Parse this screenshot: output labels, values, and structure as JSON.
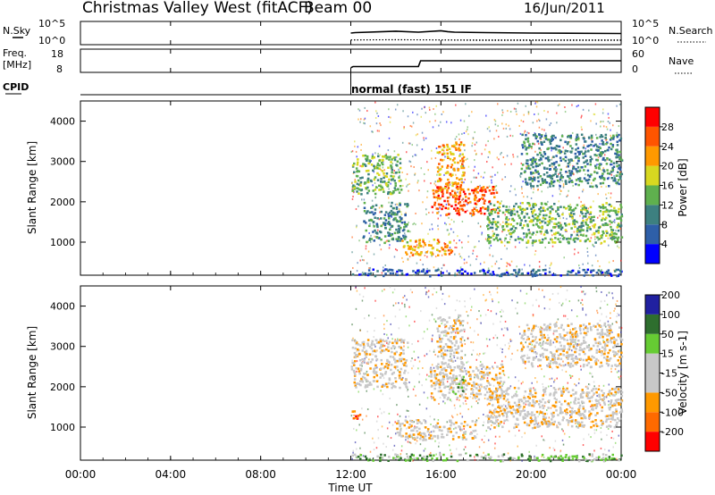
{
  "title": {
    "radar": "Christmas Valley West (fitACF)",
    "beam": "Beam 00",
    "date": "16/Jun/2011"
  },
  "colors": {
    "power": [
      "#0000ff",
      "#2e5fa8",
      "#3d8080",
      "#5fb04e",
      "#d8d820",
      "#ff9900",
      "#ff5500",
      "#ff0000"
    ],
    "velocity": [
      "#ff0000",
      "#ff6a00",
      "#ff9900",
      "#c8c8c8",
      "#c8c8c8",
      "#66cc33",
      "#2e6e2e",
      "#2020a0"
    ]
  },
  "chart_data": [
    {
      "type": "line",
      "panel": "nsky-nsearch",
      "labels": {
        "left": "N.Sky",
        "right": "N.Search"
      },
      "left_ticks": [
        "10^5",
        "10^0"
      ],
      "right_ticks": [
        "10^5",
        "10^0"
      ],
      "series": [
        {
          "name": "N.Sky",
          "style": "solid",
          "x": [
            12.0,
            12.2,
            14.0,
            15.0,
            16.0,
            16.3,
            16.6,
            18.0,
            20.0,
            24.0
          ],
          "y": [
            2.5,
            2.6,
            2.9,
            2.7,
            3.0,
            2.8,
            2.7,
            2.6,
            2.5,
            2.4
          ]
        },
        {
          "name": "N.Search",
          "style": "dotted",
          "x": [
            12.0,
            14.0,
            16.0,
            18.0,
            20.0,
            24.0
          ],
          "y": [
            1.0,
            1.1,
            1.0,
            0.9,
            0.9,
            0.9
          ]
        }
      ]
    },
    {
      "type": "line",
      "panel": "freq-nave",
      "labels": {
        "left_top": "Freq.",
        "left_bottom": "[MHz]",
        "right": "Nave"
      },
      "left_ticks": [
        "18",
        "8"
      ],
      "right_ticks": [
        "60",
        "0"
      ],
      "series": [
        {
          "name": "Freq.",
          "style": "solid",
          "x": [
            12.0,
            12.1,
            15.0,
            15.1,
            24.0
          ],
          "y": [
            10.0,
            10.5,
            10.5,
            13.0,
            13.0
          ]
        },
        {
          "name": "Nave",
          "style": "dotted",
          "x": [
            12.0,
            24.0
          ],
          "y": [
            22,
            22
          ]
        }
      ]
    },
    {
      "type": "text",
      "panel": "cpid",
      "label": "CPID",
      "x": 12.0,
      "program": "normal (fast) 151 IF"
    },
    {
      "type": "heatmap",
      "panel": "power",
      "ylabel": "Slant Range [km]",
      "ylim": [
        180,
        4500
      ],
      "yticks": [
        1000,
        2000,
        3000,
        4000
      ],
      "xlim": [
        0,
        24
      ],
      "colorbar_label": "Power [dB]",
      "colorbar_ticks": [
        "4",
        "8",
        "12",
        "16",
        "20",
        "24",
        "28"
      ],
      "regions": [
        {
          "t0": 12.0,
          "t1": 14.2,
          "r0": 2200,
          "r1": 3200,
          "level": 3
        },
        {
          "t0": 12.5,
          "t1": 14.5,
          "r0": 1000,
          "r1": 2000,
          "level": 2
        },
        {
          "t0": 15.5,
          "t1": 18.5,
          "r0": 1700,
          "r1": 2400,
          "level": 6
        },
        {
          "t0": 15.8,
          "t1": 17.0,
          "r0": 2300,
          "r1": 3500,
          "level": 5
        },
        {
          "t0": 14.2,
          "t1": 16.5,
          "r0": 700,
          "r1": 1100,
          "level": 5
        },
        {
          "t0": 18.0,
          "t1": 24.0,
          "r0": 1000,
          "r1": 2000,
          "level": 3
        },
        {
          "t0": 19.5,
          "t1": 24.0,
          "r0": 2400,
          "r1": 3700,
          "level": 2
        },
        {
          "t0": 12.0,
          "t1": 24.0,
          "r0": 180,
          "r1": 350,
          "level": 1
        }
      ]
    },
    {
      "type": "heatmap",
      "panel": "velocity",
      "ylabel": "Slant Range [km]",
      "ylim": [
        180,
        4500
      ],
      "yticks": [
        1000,
        2000,
        3000,
        4000
      ],
      "xlim": [
        0,
        24
      ],
      "colorbar_label": "Velocity [m s-1]",
      "colorbar_ticks": [
        "-200",
        "-100",
        "-50",
        "-15",
        "15",
        "50",
        "100",
        "200"
      ],
      "regions": [
        {
          "t0": 12.0,
          "t1": 14.5,
          "r0": 2000,
          "r1": 3200,
          "level": 3
        },
        {
          "t0": 15.5,
          "t1": 18.8,
          "r0": 1700,
          "r1": 2600,
          "level": 3
        },
        {
          "t0": 15.8,
          "t1": 17.0,
          "r0": 2400,
          "r1": 3800,
          "level": 3
        },
        {
          "t0": 14.0,
          "t1": 17.5,
          "r0": 700,
          "r1": 1200,
          "level": 3
        },
        {
          "t0": 18.0,
          "t1": 24.0,
          "r0": 1000,
          "r1": 2000,
          "level": 3
        },
        {
          "t0": 19.5,
          "t1": 24.0,
          "r0": 2500,
          "r1": 3600,
          "level": 3
        },
        {
          "t0": 12.0,
          "t1": 12.4,
          "r0": 1200,
          "r1": 1500,
          "level": 1
        },
        {
          "t0": 16.5,
          "t1": 17.0,
          "r0": 1800,
          "r1": 2300,
          "level": 5
        },
        {
          "t0": 12.0,
          "t1": 24.0,
          "r0": 180,
          "r1": 350,
          "level": 5
        }
      ]
    }
  ],
  "xaxis": {
    "label": "Time UT",
    "ticks": [
      "00:00",
      "04:00",
      "08:00",
      "12:00",
      "16:00",
      "20:00",
      "00:00"
    ],
    "values": [
      0,
      4,
      8,
      12,
      16,
      20,
      24
    ]
  }
}
